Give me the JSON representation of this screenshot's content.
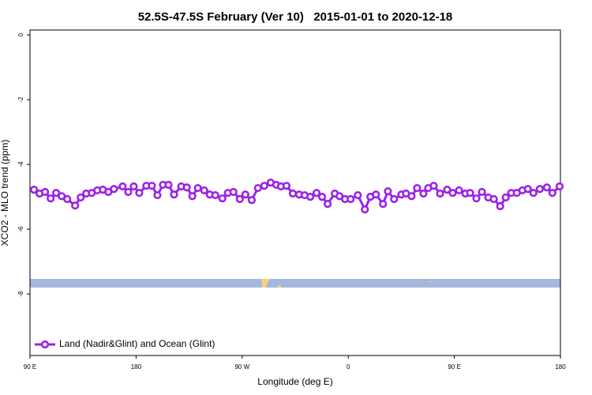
{
  "chart_data": {
    "type": "line",
    "title": "52.5S-47.5S February (Ver 10)   2015-01-01 to 2020-12-18",
    "x_label": "Longitude (deg E)",
    "y_label": "XCO2 - MLO trend (ppm)",
    "xlim": [
      90,
      540
    ],
    "ylim": [
      -9.9,
      0.15
    ],
    "xticks": [
      {
        "value": 90,
        "label": "90 E"
      },
      180,
      {
        "value": 270,
        "label": "90 W"
      },
      {
        "value": 360,
        "label": "0"
      },
      {
        "value": 450,
        "label": "90 E"
      },
      {
        "value": 540,
        "label": "180"
      }
    ],
    "yticks": [
      0,
      -2,
      -4,
      -6,
      -8
    ],
    "legend_position": "bottomleft",
    "x": [
      93.4,
      98.1,
      102.8,
      107.5,
      112.2,
      116.9,
      121.6,
      128.3,
      133,
      137.7,
      142.4,
      147.1,
      151.8,
      156.5,
      161.2,
      168.6,
      173.3,
      178,
      182.7,
      188.7,
      193.4,
      198.1,
      202.8,
      207.5,
      212.2,
      218.3,
      223,
      227.7,
      232.4,
      237.8,
      242.5,
      247.2,
      253.2,
      257.9,
      262.6,
      268,
      272.7,
      278.1,
      283.4,
      288.8,
      294.2,
      298.9,
      302.9,
      307.6,
      313,
      318.3,
      323,
      327.8,
      333.1,
      337.8,
      342.5,
      348.6,
      352.6,
      357.3,
      362,
      368.1,
      374.1,
      378.8,
      383.5,
      389.5,
      393.6,
      398.9,
      405,
      409,
      413.7,
      418.4,
      423.8,
      427.8,
      432.5,
      437.9,
      443.9,
      448.6,
      454,
      459.4,
      463.4,
      468.7,
      473.4,
      478.8,
      483.5,
      488.9,
      493.6,
      498.3,
      503,
      507.7,
      512.4,
      517.1,
      522.5,
      528.5,
      533.2,
      539.3
    ],
    "series": [
      {
        "name": "Land (Nadir&Glint) and Ocean (Glint)",
        "color": "#9b22e6",
        "values": [
          -4.78,
          -4.9,
          -4.85,
          -5.05,
          -4.88,
          -4.98,
          -5.07,
          -5.27,
          -5.02,
          -4.9,
          -4.88,
          -4.8,
          -4.78,
          -4.85,
          -4.76,
          -4.68,
          -4.85,
          -4.68,
          -4.88,
          -4.66,
          -4.66,
          -4.95,
          -4.63,
          -4.63,
          -4.93,
          -4.68,
          -4.71,
          -4.98,
          -4.73,
          -4.8,
          -4.93,
          -4.95,
          -5.05,
          -4.88,
          -4.85,
          -5.07,
          -4.93,
          -5.1,
          -4.73,
          -4.66,
          -4.56,
          -4.63,
          -4.68,
          -4.66,
          -4.9,
          -4.93,
          -4.95,
          -5.0,
          -4.88,
          -5.0,
          -5.22,
          -4.9,
          -4.98,
          -5.07,
          -5.07,
          -4.95,
          -5.39,
          -5.0,
          -4.93,
          -5.22,
          -4.83,
          -5.07,
          -4.93,
          -4.9,
          -4.98,
          -4.73,
          -4.9,
          -4.73,
          -4.66,
          -4.9,
          -4.78,
          -4.88,
          -4.8,
          -4.9,
          -4.88,
          -5.05,
          -4.85,
          -5.02,
          -5.07,
          -5.29,
          -5.02,
          -4.88,
          -4.88,
          -4.8,
          -4.76,
          -4.88,
          -4.76,
          -4.71,
          -4.88,
          -4.68
        ]
      }
    ]
  }
}
